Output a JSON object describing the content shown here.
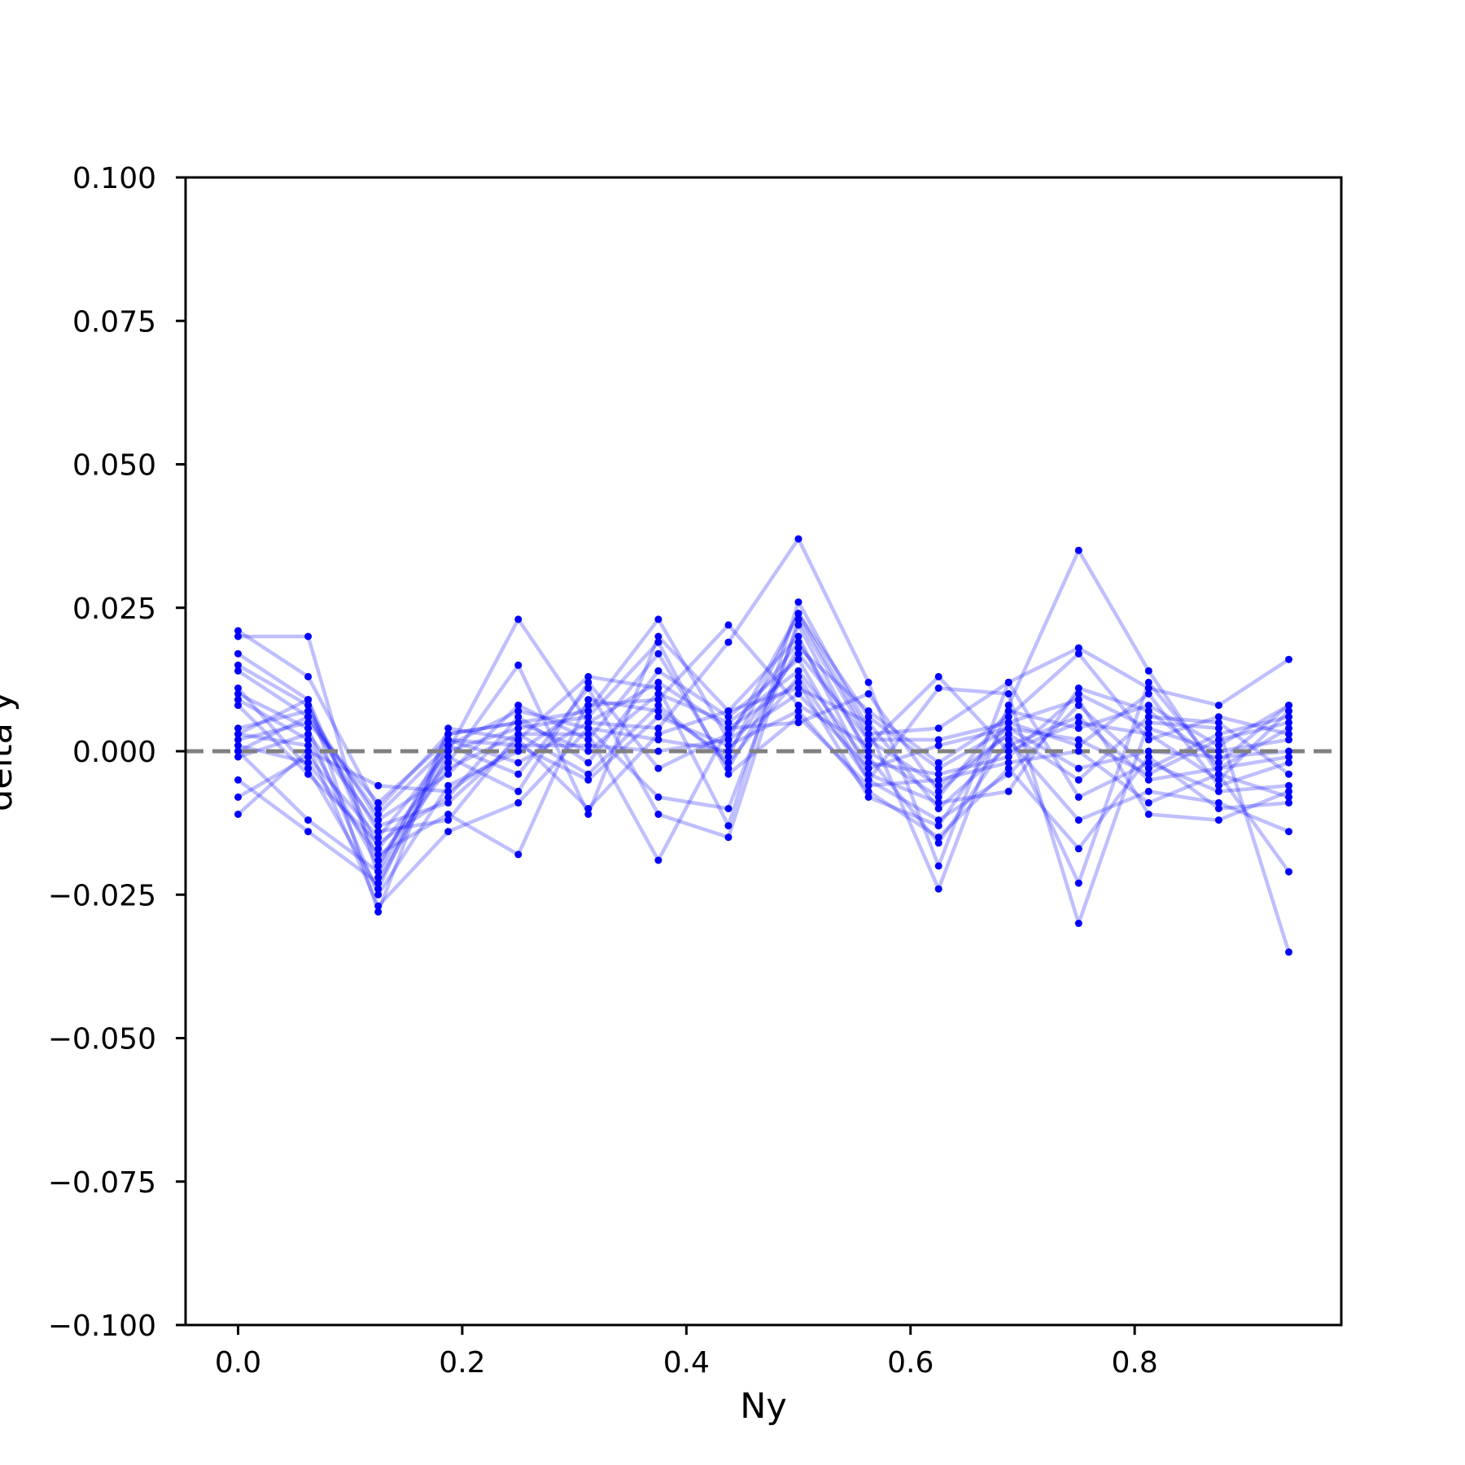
{
  "chart_data": {
    "type": "line",
    "title": "",
    "xlabel": "Ny",
    "ylabel": "delta y",
    "xlim": [
      -0.046875,
      0.984375
    ],
    "ylim": [
      -0.1,
      0.1
    ],
    "xticks": [
      "0.0",
      "0.2",
      "0.4",
      "0.6",
      "0.8"
    ],
    "xtick_values": [
      0.0,
      0.2,
      0.4,
      0.6,
      0.8
    ],
    "yticks": [
      "−0.100",
      "−0.075",
      "−0.050",
      "−0.025",
      "0.000",
      "0.025",
      "0.050",
      "0.075",
      "0.100"
    ],
    "ytick_values": [
      -0.1,
      -0.075,
      -0.05,
      -0.025,
      0.0,
      0.025,
      0.05,
      0.075,
      0.1
    ],
    "grid": false,
    "legend": "none",
    "line_color": "#0000ff",
    "line_opacity": 0.25,
    "reference_line": {
      "y": 0.0,
      "style": "dashed",
      "color": "#808080"
    },
    "x": [
      0.0,
      0.0625,
      0.125,
      0.1875,
      0.25,
      0.3125,
      0.375,
      0.4375,
      0.5,
      0.5625,
      0.625,
      0.6875,
      0.75,
      0.8125,
      0.875,
      0.9375
    ],
    "series": [
      {
        "values": [
          0.021,
          0.013,
          -0.01,
          0.003,
          0.005,
          0.007,
          0.023,
          0.002,
          0.024,
          0.006,
          -0.003,
          0.004,
          0.002,
          -0.004,
          0.002,
          0.005
        ]
      },
      {
        "values": [
          0.02,
          0.02,
          -0.022,
          0.0,
          0.023,
          0.005,
          0.004,
          0.019,
          0.037,
          0.012,
          -0.02,
          0.012,
          0.018,
          0.011,
          0.008,
          0.016
        ]
      },
      {
        "values": [
          0.017,
          0.009,
          -0.028,
          0.004,
          0.002,
          0.013,
          0.011,
          -0.013,
          0.026,
          0.004,
          -0.024,
          0.008,
          0.035,
          0.014,
          -0.004,
          -0.021
        ]
      },
      {
        "values": [
          0.015,
          0.008,
          -0.017,
          -0.002,
          0.015,
          -0.011,
          0.02,
          0.007,
          0.02,
          -0.004,
          -0.009,
          -0.007,
          0.011,
          0.007,
          -0.002,
          0.008
        ]
      },
      {
        "values": [
          0.014,
          0.006,
          -0.014,
          -0.012,
          0.003,
          0.003,
          -0.019,
          0.004,
          0.012,
          -0.008,
          -0.013,
          0.005,
          0.009,
          -0.011,
          -0.012,
          -0.007
        ]
      },
      {
        "values": [
          0.01,
          0.004,
          -0.025,
          -0.006,
          0.0,
          0.008,
          0.009,
          0.022,
          0.008,
          0.001,
          0.013,
          0.0,
          0.005,
          0.003,
          -0.005,
          0.007
        ]
      },
      {
        "values": [
          0.009,
          0.002,
          -0.02,
          0.001,
          -0.004,
          0.011,
          -0.011,
          -0.015,
          0.023,
          0.002,
          -0.006,
          0.003,
          -0.023,
          0.012,
          -0.003,
          0.004
        ]
      },
      {
        "values": [
          0.008,
          -0.004,
          -0.016,
          -0.008,
          0.006,
          -0.002,
          0.014,
          0.006,
          0.016,
          -0.005,
          0.011,
          0.01,
          -0.03,
          0.005,
          0.004,
          -0.035
        ]
      },
      {
        "values": [
          0.004,
          0.007,
          -0.012,
          -0.004,
          0.008,
          0.002,
          0.017,
          -0.003,
          0.018,
          0.007,
          -0.002,
          0.006,
          0.017,
          0.002,
          0.006,
          0.003
        ]
      },
      {
        "values": [
          0.003,
          0.001,
          -0.027,
          -0.014,
          -0.009,
          0.004,
          -0.008,
          -0.01,
          0.022,
          -0.001,
          -0.016,
          0.002,
          -0.012,
          -0.007,
          -0.009,
          -0.014
        ]
      },
      {
        "values": [
          0.002,
          0.005,
          -0.009,
          0.002,
          0.001,
          -0.005,
          0.006,
          0.001,
          0.007,
          -0.007,
          -0.015,
          -0.003,
          -0.017,
          -0.001,
          -0.01,
          -0.009
        ]
      },
      {
        "values": [
          0.001,
          -0.002,
          -0.018,
          -0.011,
          -0.018,
          0.009,
          0.007,
          -0.001,
          0.024,
          0.003,
          0.004,
          0.012,
          -0.008,
          -0.002,
          -0.007,
          -0.006
        ]
      },
      {
        "values": [
          0.0,
          -0.012,
          -0.021,
          0.003,
          0.005,
          0.0,
          0.01,
          0.005,
          0.014,
          -0.002,
          -0.004,
          -0.001,
          0.01,
          0.004,
          0.0,
          0.002
        ]
      },
      {
        "values": [
          -0.001,
          0.003,
          -0.013,
          -0.009,
          0.002,
          -0.01,
          0.003,
          0.007,
          0.011,
          0.005,
          -0.01,
          0.001,
          0.006,
          -0.005,
          -0.003,
          -0.001
        ]
      },
      {
        "values": [
          -0.005,
          -0.014,
          -0.023,
          -0.001,
          -0.007,
          0.012,
          -0.003,
          0.003,
          0.019,
          0.0,
          -0.008,
          0.007,
          0.004,
          0.008,
          0.001,
          0.008
        ]
      },
      {
        "values": [
          -0.008,
          -0.001,
          -0.015,
          0.0,
          0.004,
          0.006,
          0.019,
          -0.004,
          0.006,
          -0.006,
          -0.005,
          -0.002,
          0.0,
          -0.009,
          -0.004,
          -0.008
        ]
      },
      {
        "values": [
          -0.011,
          0.0,
          -0.006,
          -0.007,
          0.001,
          0.001,
          0.0,
          0.002,
          0.01,
          -0.003,
          0.001,
          0.004,
          -0.003,
          0.0,
          -0.001,
          0.0
        ]
      },
      {
        "values": [
          0.011,
          -0.003,
          -0.024,
          0.002,
          -0.002,
          0.005,
          0.012,
          0.004,
          0.005,
          0.01,
          -0.007,
          0.003,
          -0.005,
          0.006,
          0.005,
          -0.004
        ]
      },
      {
        "values": [
          0.003,
          0.009,
          -0.019,
          -0.003,
          0.003,
          -0.004,
          0.008,
          -0.002,
          0.013,
          -0.005,
          -0.012,
          -0.004,
          0.008,
          -0.003,
          0.003,
          0.006
        ]
      },
      {
        "values": [
          0.0,
          0.006,
          -0.011,
          0.001,
          0.007,
          0.004,
          0.002,
          0.0,
          0.017,
          0.002,
          0.002,
          0.005,
          0.001,
          0.01,
          -0.006,
          -0.002
        ]
      }
    ]
  }
}
